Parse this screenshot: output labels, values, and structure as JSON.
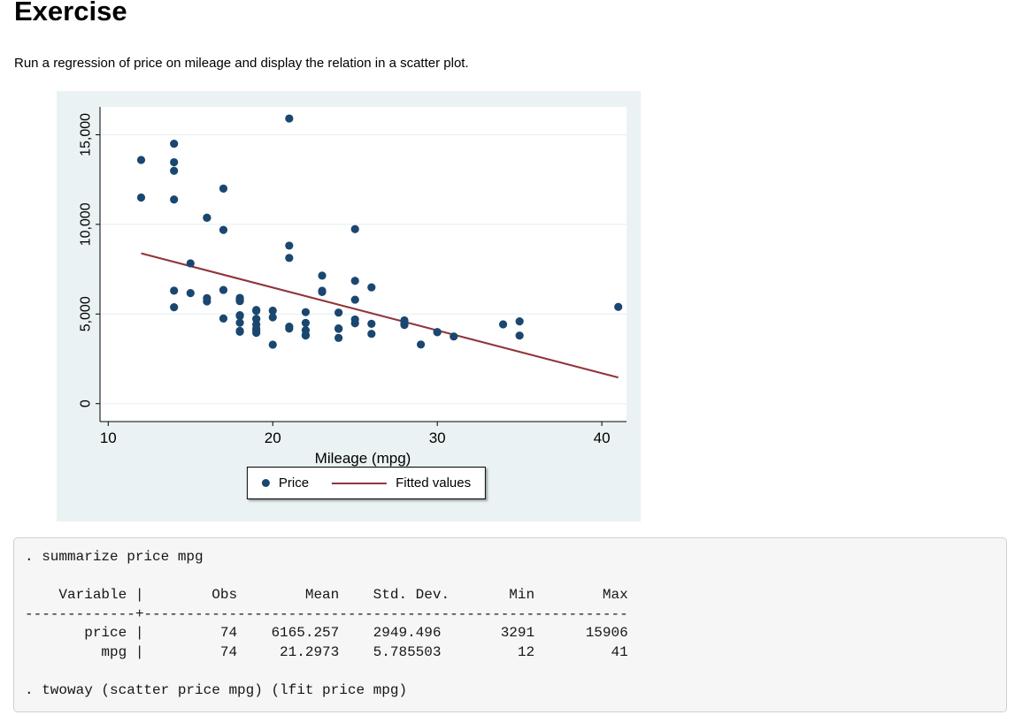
{
  "page": {
    "title": "Exercise",
    "subtitle": "Run a regression of price on mileage and display the relation in a scatter plot."
  },
  "colors": {
    "scatter_marker": "#1a476f",
    "fit_line": "#90353b",
    "graph_background": "#eaf2f3",
    "plot_background": "#ffffff",
    "grid": "#e3edef",
    "axis": "#000000"
  },
  "chart_data": {
    "type": "scatter",
    "title": "",
    "xlabel": "Mileage (mpg)",
    "ylabel": "",
    "xlim": [
      9.5,
      41.5
    ],
    "ylim": [
      -1000,
      16550
    ],
    "x_ticks": [
      10,
      20,
      30,
      40
    ],
    "y_ticks": [
      0,
      5000,
      10000,
      15000
    ],
    "y_tick_labels": [
      "0",
      "5,000",
      "10,000",
      "15,000"
    ],
    "grid": true,
    "legend_position": "bottom-center",
    "series": [
      {
        "name": "Price",
        "kind": "scatter",
        "color": "#1a476f",
        "points": [
          [
            22,
            4099
          ],
          [
            17,
            4749
          ],
          [
            22,
            3799
          ],
          [
            20,
            4816
          ],
          [
            15,
            7827
          ],
          [
            18,
            5788
          ],
          [
            26,
            4453
          ],
          [
            20,
            5189
          ],
          [
            16,
            10372
          ],
          [
            19,
            4082
          ],
          [
            14,
            11385
          ],
          [
            14,
            14500
          ],
          [
            21,
            15906
          ],
          [
            29,
            3299
          ],
          [
            16,
            5705
          ],
          [
            22,
            4504
          ],
          [
            22,
            5104
          ],
          [
            24,
            3667
          ],
          [
            19,
            3955
          ],
          [
            30,
            3984
          ],
          [
            18,
            4010
          ],
          [
            16,
            5886
          ],
          [
            17,
            6342
          ],
          [
            28,
            4389
          ],
          [
            21,
            4187
          ],
          [
            12,
            11497
          ],
          [
            12,
            13594
          ],
          [
            14,
            13466
          ],
          [
            22,
            3829
          ],
          [
            14,
            5379
          ],
          [
            15,
            6165
          ],
          [
            18,
            4516
          ],
          [
            14,
            6303
          ],
          [
            20,
            3291
          ],
          [
            21,
            8814
          ],
          [
            19,
            5172
          ],
          [
            19,
            4733
          ],
          [
            18,
            4890
          ],
          [
            19,
            4181
          ],
          [
            24,
            4195
          ],
          [
            16,
            10371
          ],
          [
            28,
            4647
          ],
          [
            34,
            4425
          ],
          [
            25,
            4482
          ],
          [
            26,
            6486
          ],
          [
            18,
            4060
          ],
          [
            18,
            5798
          ],
          [
            18,
            4934
          ],
          [
            19,
            5222
          ],
          [
            19,
            4723
          ],
          [
            19,
            4424
          ],
          [
            24,
            4172
          ],
          [
            17,
            9690
          ],
          [
            23,
            6295
          ],
          [
            25,
            9735
          ],
          [
            23,
            6229
          ],
          [
            35,
            4589
          ],
          [
            24,
            5079
          ],
          [
            21,
            8129
          ],
          [
            21,
            4296
          ],
          [
            25,
            5799
          ],
          [
            28,
            4499
          ],
          [
            30,
            3995
          ],
          [
            14,
            12990
          ],
          [
            26,
            3895
          ],
          [
            35,
            3798
          ],
          [
            18,
            5899
          ],
          [
            31,
            3748
          ],
          [
            18,
            5719
          ],
          [
            17,
            11995
          ],
          [
            23,
            7140
          ],
          [
            41,
            5397
          ],
          [
            25,
            4697
          ],
          [
            25,
            6850
          ]
        ]
      },
      {
        "name": "Fitted values",
        "kind": "line",
        "color": "#90353b",
        "points": [
          [
            12,
            8386.3
          ],
          [
            41,
            1458.4
          ]
        ]
      }
    ]
  },
  "terminal": {
    "lines": [
      ". summarize price mpg",
      "",
      "    Variable |        Obs        Mean    Std. Dev.       Min        Max",
      "-------------+---------------------------------------------------------",
      "       price |         74    6165.257    2949.496       3291      15906",
      "         mpg |         74     21.2973    5.785503         12         41",
      "",
      ". twoway (scatter price mpg) (lfit price mpg)"
    ],
    "summary_table": {
      "headers": [
        "Variable",
        "Obs",
        "Mean",
        "Std. Dev.",
        "Min",
        "Max"
      ],
      "rows": [
        [
          "price",
          "74",
          "6165.257",
          "2949.496",
          "3291",
          "15906"
        ],
        [
          "mpg",
          "74",
          "21.2973",
          "5.785503",
          "12",
          "41"
        ]
      ]
    },
    "commands": [
      ". summarize price mpg",
      ". twoway (scatter price mpg) (lfit price mpg)"
    ]
  }
}
